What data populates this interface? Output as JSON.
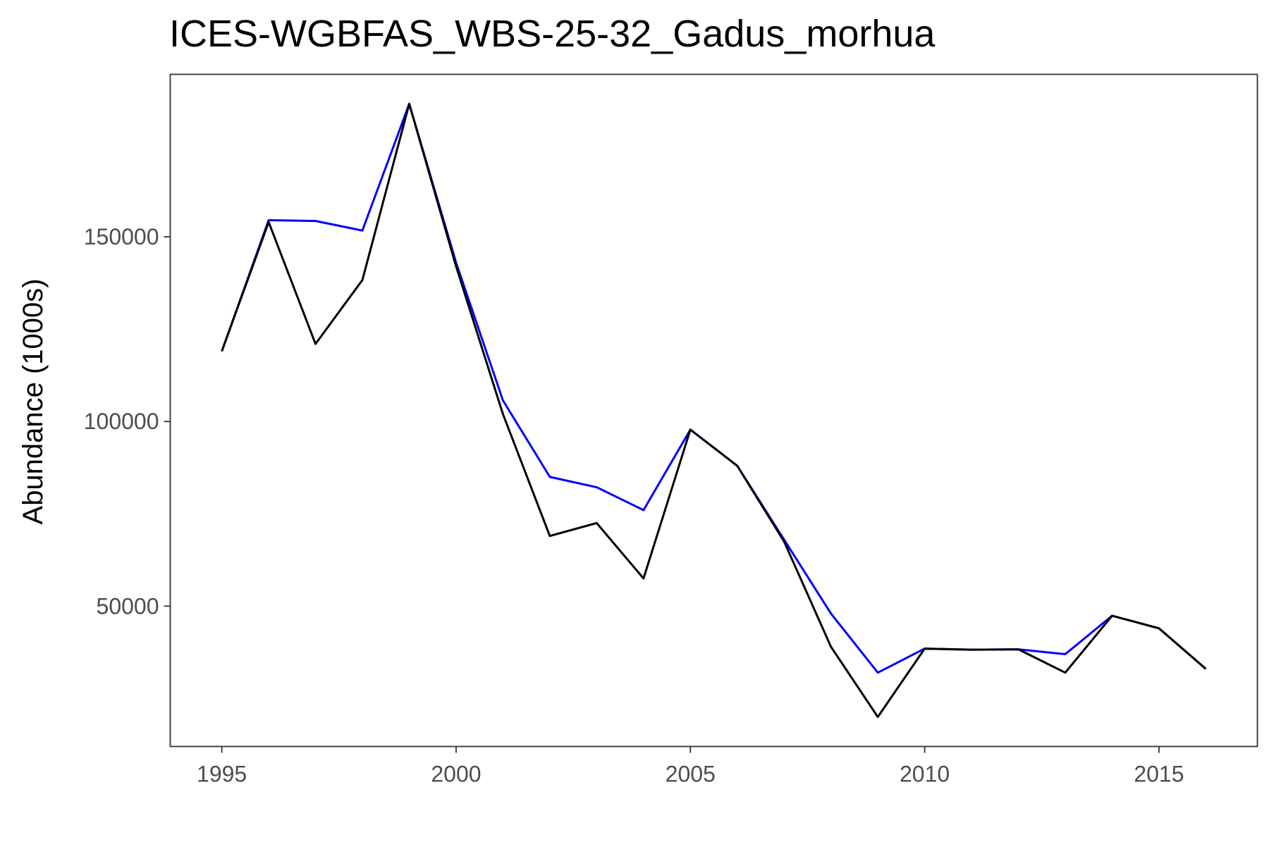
{
  "chart_data": {
    "type": "line",
    "title": "ICES-WGBFAS_WBS-25-32_Gadus_morhua",
    "xlabel": "",
    "ylabel": "Abundance (1000s)",
    "xlim": [
      1993.9,
      2017.1
    ],
    "ylim": [
      12000,
      194000
    ],
    "x_ticks": [
      1995,
      2000,
      2005,
      2010,
      2015
    ],
    "x_tick_labels": [
      "1995",
      "2000",
      "2005",
      "2010",
      "2015"
    ],
    "y_ticks": [
      50000,
      100000,
      150000
    ],
    "y_tick_labels": [
      "50000",
      "100000",
      "150000"
    ],
    "grid": false,
    "legend": "none",
    "series": [
      {
        "color": "#0000ff",
        "x": [
          1995,
          1996,
          1997,
          1998,
          1999,
          2000,
          2001,
          2002,
          2003,
          2004,
          2005,
          2006,
          2007,
          2008,
          2009,
          2010,
          2011,
          2012,
          2013,
          2014,
          2015,
          2016
        ],
        "y": [
          119000,
          154500,
          154300,
          151700,
          186000,
          143000,
          105700,
          85000,
          82200,
          76000,
          97800,
          88000,
          68000,
          48000,
          32000,
          38500,
          38200,
          38300,
          37000,
          47400,
          44000,
          33000
        ]
      },
      {
        "color": "#000000",
        "x": [
          1995,
          1996,
          1997,
          1998,
          1999,
          2000,
          2001,
          2002,
          2003,
          2004,
          2005,
          2006,
          2007,
          2008,
          2009,
          2010,
          2011,
          2012,
          2013,
          2014,
          2015,
          2016
        ],
        "y": [
          119000,
          154000,
          121000,
          138300,
          186000,
          142000,
          102000,
          69000,
          72500,
          57500,
          97800,
          88000,
          67500,
          39000,
          20000,
          38500,
          38200,
          38300,
          32000,
          47400,
          44000,
          33000
        ]
      }
    ]
  }
}
